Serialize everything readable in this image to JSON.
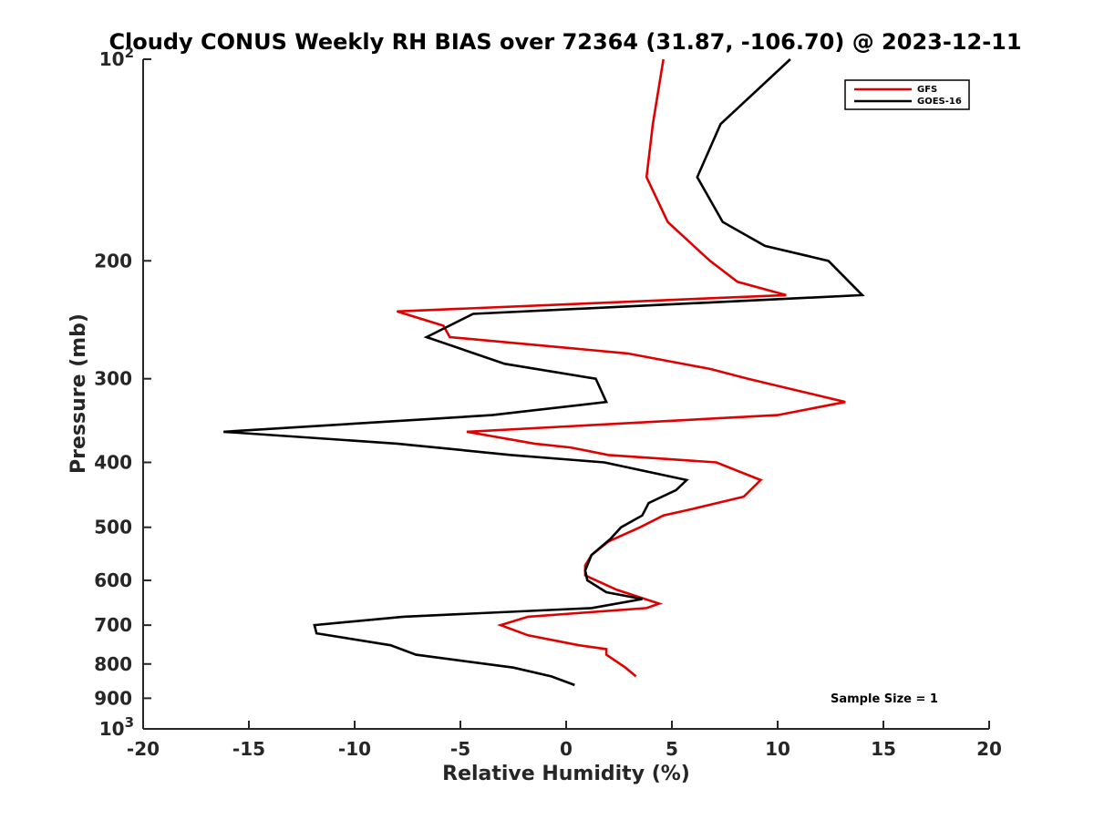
{
  "chart_data": {
    "type": "line",
    "title": "Cloudy CONUS Weekly RH BIAS over 72364 (31.87, -106.70) @ 2023-12-11",
    "xlabel": "Relative Humidity (%)",
    "ylabel": "Pressure (mb)",
    "xlim": [
      -20,
      20
    ],
    "ylim": [
      100,
      1000
    ],
    "y_scale": "log",
    "y_reversed": true,
    "xticks": [
      -20,
      -15,
      -10,
      -5,
      0,
      5,
      10,
      15,
      20
    ],
    "xtick_labels": [
      "-20",
      "-15",
      "-10",
      "-5",
      "0",
      "5",
      "10",
      "15",
      "20"
    ],
    "yticks": [
      {
        "value": 100,
        "base": "10",
        "exp": "2",
        "label": ""
      },
      {
        "value": 200,
        "base": "",
        "exp": "",
        "label": "200"
      },
      {
        "value": 300,
        "base": "",
        "exp": "",
        "label": "300"
      },
      {
        "value": 400,
        "base": "",
        "exp": "",
        "label": "400"
      },
      {
        "value": 500,
        "base": "",
        "exp": "",
        "label": "500"
      },
      {
        "value": 600,
        "base": "",
        "exp": "",
        "label": "600"
      },
      {
        "value": 700,
        "base": "",
        "exp": "",
        "label": "700"
      },
      {
        "value": 800,
        "base": "",
        "exp": "",
        "label": "800"
      },
      {
        "value": 900,
        "base": "",
        "exp": "",
        "label": "900"
      },
      {
        "value": 1000,
        "base": "10",
        "exp": "3",
        "label": ""
      }
    ],
    "grid": false,
    "legend_position": "top-right",
    "annotation": "Sample Size = 1",
    "series": [
      {
        "name": "GFS",
        "color": "#e00000",
        "points": [
          [
            4.6,
            100
          ],
          [
            4.1,
            125
          ],
          [
            3.8,
            150
          ],
          [
            4.8,
            175
          ],
          [
            6.8,
            200
          ],
          [
            8.1,
            215
          ],
          [
            10.4,
            225
          ],
          [
            -8.0,
            238
          ],
          [
            -5.8,
            250
          ],
          [
            -5.5,
            260
          ],
          [
            2.9,
            275
          ],
          [
            6.8,
            290
          ],
          [
            8.6,
            300
          ],
          [
            13.2,
            325
          ],
          [
            10.0,
            340
          ],
          [
            -4.7,
            360
          ],
          [
            -1.5,
            375
          ],
          [
            0.2,
            380
          ],
          [
            2.0,
            390
          ],
          [
            7.1,
            400
          ],
          [
            9.2,
            425
          ],
          [
            8.4,
            450
          ],
          [
            5.9,
            470
          ],
          [
            4.6,
            480
          ],
          [
            3.5,
            500
          ],
          [
            2.0,
            525
          ],
          [
            1.2,
            550
          ],
          [
            0.9,
            570
          ],
          [
            0.9,
            590
          ],
          [
            2.4,
            620
          ],
          [
            4.4,
            650
          ],
          [
            3.8,
            660
          ],
          [
            -1.8,
            680
          ],
          [
            -3.1,
            700
          ],
          [
            -1.8,
            725
          ],
          [
            0.6,
            750
          ],
          [
            1.9,
            760
          ],
          [
            1.9,
            775
          ],
          [
            2.3,
            790
          ],
          [
            2.8,
            810
          ],
          [
            3.3,
            835
          ]
        ]
      },
      {
        "name": "GOES-16",
        "color": "#000000",
        "points": [
          [
            10.6,
            100
          ],
          [
            7.3,
            125
          ],
          [
            6.2,
            150
          ],
          [
            7.4,
            175
          ],
          [
            9.4,
            190
          ],
          [
            12.4,
            200
          ],
          [
            14.0,
            225
          ],
          [
            -4.4,
            240
          ],
          [
            -6.6,
            260
          ],
          [
            -2.9,
            285
          ],
          [
            1.4,
            300
          ],
          [
            1.9,
            325
          ],
          [
            -3.5,
            340
          ],
          [
            -16.2,
            360
          ],
          [
            -8.0,
            375
          ],
          [
            -2.6,
            390
          ],
          [
            1.8,
            400
          ],
          [
            5.7,
            425
          ],
          [
            5.2,
            440
          ],
          [
            3.9,
            460
          ],
          [
            3.6,
            480
          ],
          [
            2.6,
            500
          ],
          [
            2.1,
            520
          ],
          [
            1.2,
            550
          ],
          [
            0.9,
            580
          ],
          [
            1.0,
            600
          ],
          [
            1.9,
            625
          ],
          [
            3.6,
            640
          ],
          [
            1.2,
            660
          ],
          [
            -7.7,
            680
          ],
          [
            -11.9,
            700
          ],
          [
            -11.8,
            720
          ],
          [
            -8.3,
            750
          ],
          [
            -7.1,
            775
          ],
          [
            -2.5,
            810
          ],
          [
            -0.7,
            835
          ],
          [
            0.4,
            860
          ]
        ]
      }
    ]
  }
}
